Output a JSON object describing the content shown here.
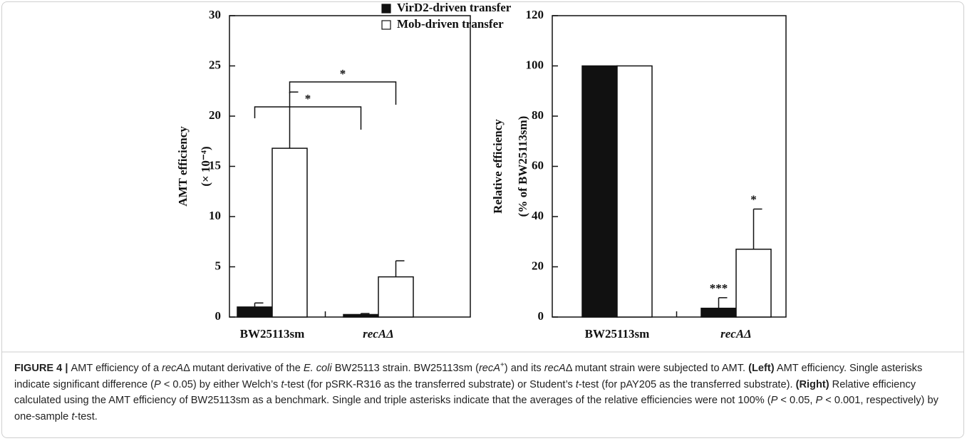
{
  "legend": [
    {
      "name": "VirD2-driven transfer",
      "color": "#111111"
    },
    {
      "name": "Mob-driven transfer",
      "color": "#ffffff"
    }
  ],
  "chart_data": [
    {
      "type": "bar",
      "ylabel": [
        "AMT efficiency",
        "(× 10⁻⁴)"
      ],
      "categories": [
        "BW25113sm",
        "recAΔ"
      ],
      "series": [
        {
          "color": "#111111",
          "values": [
            1.0,
            0.25
          ],
          "errors": [
            0.4,
            0.1
          ]
        },
        {
          "color": "#ffffff",
          "values": [
            16.8,
            4.0
          ],
          "errors": [
            5.6,
            1.6
          ]
        }
      ],
      "ylim": [
        0,
        30
      ],
      "yticks": [
        0,
        5,
        10,
        15,
        20,
        25,
        30
      ],
      "annotations": [
        "*",
        "*"
      ]
    },
    {
      "type": "bar",
      "ylabel": [
        "Relative efficiency",
        "(% of BW25113sm)"
      ],
      "categories": [
        "BW25113sm",
        "recAΔ"
      ],
      "series": [
        {
          "color": "#111111",
          "values": [
            100,
            3.5
          ],
          "errors": [
            null,
            4.2
          ]
        },
        {
          "color": "#ffffff",
          "values": [
            100,
            27
          ],
          "errors": [
            null,
            16
          ]
        }
      ],
      "ylim": [
        0,
        120
      ],
      "yticks": [
        0,
        20,
        40,
        60,
        80,
        100,
        120
      ],
      "annotations": [
        "***",
        "*"
      ]
    }
  ],
  "caption": [
    {
      "text": "FIGURE 4 | ",
      "style": "bold"
    },
    {
      "text": "AMT efficiency of a "
    },
    {
      "text": "recA",
      "style": "italic"
    },
    {
      "text": "Δ mutant derivative of the "
    },
    {
      "text": "E. coli",
      "style": "italic"
    },
    {
      "text": " BW25113 strain. BW25113sm ("
    },
    {
      "text": "recA",
      "style": "italic"
    },
    {
      "text": "+",
      "style": "sup"
    },
    {
      "text": ") and its "
    },
    {
      "text": "recA",
      "style": "italic"
    },
    {
      "text": "Δ mutant strain were subjected to AMT. "
    },
    {
      "text": "(Left)",
      "style": "bold"
    },
    {
      "text": " AMT efficiency. Single asterisks indicate significant difference ("
    },
    {
      "text": "P",
      "style": "italic"
    },
    {
      "text": " < 0.05) by either Welch’s "
    },
    {
      "text": "t",
      "style": "italic"
    },
    {
      "text": "-test (for pSRK-R316 as the transferred substrate) or Student’s "
    },
    {
      "text": "t",
      "style": "italic"
    },
    {
      "text": "-test (for pAY205 as the transferred substrate). "
    },
    {
      "text": "(Right)",
      "style": "bold"
    },
    {
      "text": " Relative efficiency calculated using the AMT efficiency of BW25113sm as a benchmark. Single and triple asterisks indicate that the averages of the relative efficiencies were not 100% ("
    },
    {
      "text": "P",
      "style": "italic"
    },
    {
      "text": " < 0.05, "
    },
    {
      "text": "P",
      "style": "italic"
    },
    {
      "text": " < 0.001, respectively) by one-sample "
    },
    {
      "text": "t",
      "style": "italic"
    },
    {
      "text": "-test."
    }
  ]
}
